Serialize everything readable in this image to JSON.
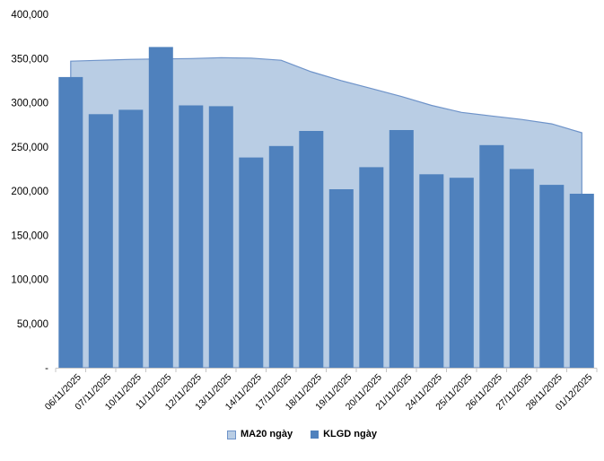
{
  "legend": {
    "ma20_label": "MA20 ngày",
    "klgd_label": "KLGD ngày"
  },
  "colors": {
    "bar_fill": "#4F81BD",
    "area_fill": "#B9CDE4",
    "area_border": "#6E93C9",
    "axis_line": "#C6C6C6",
    "label_text": "#000000"
  },
  "chart_data": {
    "type": "bar",
    "subtype": "bar-with-area-overlay",
    "title": "",
    "xlabel": "",
    "ylabel": "",
    "grid": false,
    "legend_position": "bottom",
    "ylim": [
      0,
      400000
    ],
    "categories": [
      "06/11/2025",
      "07/11/2025",
      "10/11/2025",
      "11/11/2025",
      "12/11/2025",
      "13/11/2025",
      "14/11/2025",
      "17/11/2025",
      "18/11/2025",
      "19/11/2025",
      "20/11/2025",
      "21/11/2025",
      "24/11/2025",
      "25/11/2025",
      "26/11/2025",
      "27/11/2025",
      "28/11/2025",
      "01/12/2025"
    ],
    "series": [
      {
        "name": "MA20 ngày",
        "type": "area",
        "values": [
          347000,
          348000,
          349000,
          349500,
          350000,
          351000,
          350500,
          348000,
          335000,
          325000,
          316000,
          307000,
          297000,
          289000,
          285000,
          281000,
          276000,
          266000
        ]
      },
      {
        "name": "KLGD ngày",
        "type": "bar",
        "values": [
          329000,
          287000,
          292000,
          363000,
          297000,
          296000,
          238000,
          251000,
          268000,
          202000,
          227000,
          269000,
          219000,
          215000,
          252000,
          225000,
          207000,
          197000
        ]
      }
    ],
    "y_ticks": [
      {
        "value": 400000,
        "label": "400,000"
      },
      {
        "value": 350000,
        "label": "350,000"
      },
      {
        "value": 300000,
        "label": "300,000"
      },
      {
        "value": 250000,
        "label": "250,000"
      },
      {
        "value": 200000,
        "label": "200,000"
      },
      {
        "value": 150000,
        "label": "150,000"
      },
      {
        "value": 100000,
        "label": "100,000"
      },
      {
        "value": 50000,
        "label": "50,000"
      },
      {
        "value": 0,
        "label": "-"
      }
    ]
  }
}
